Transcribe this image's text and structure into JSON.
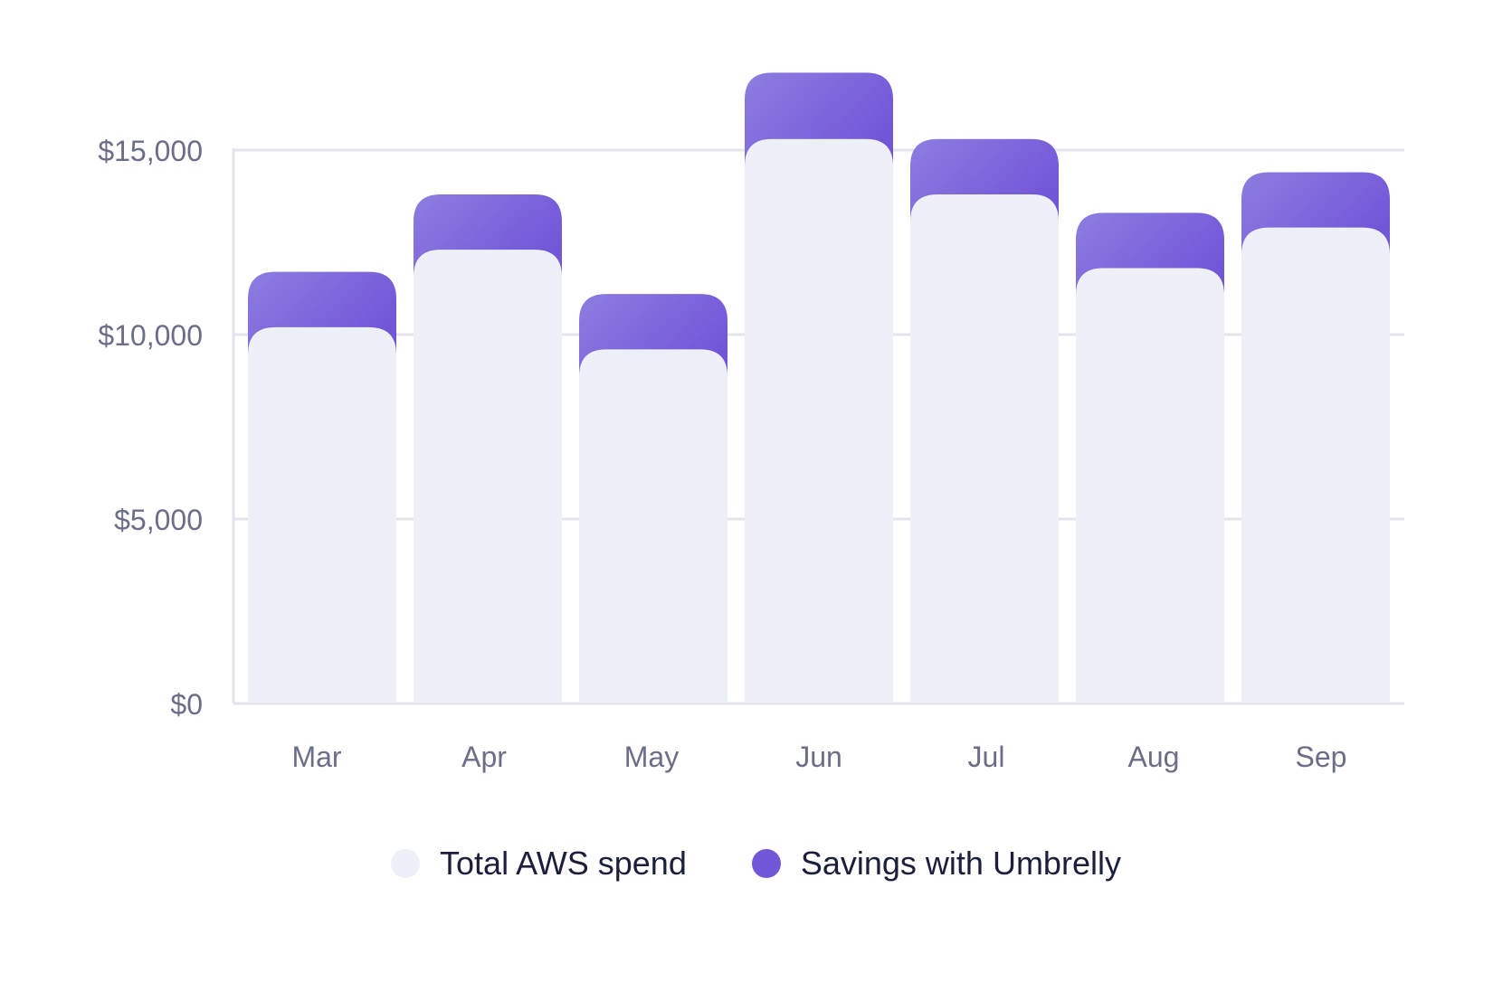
{
  "chart_data": {
    "type": "bar",
    "stacked": true,
    "categories": [
      "Mar",
      "Apr",
      "May",
      "Jun",
      "Jul",
      "Aug",
      "Sep"
    ],
    "series": [
      {
        "name": "Total AWS spend",
        "values": [
          10200,
          12300,
          9600,
          15300,
          13800,
          11800,
          12900
        ],
        "color": "#eef0f7"
      },
      {
        "name": "Savings with Umbrelly",
        "values": [
          1500,
          1500,
          1500,
          1800,
          1500,
          1500,
          1500
        ],
        "color": "#7256d8"
      }
    ],
    "y_ticks": [
      {
        "value": 0,
        "label": "$0"
      },
      {
        "value": 5000,
        "label": "$5,000"
      },
      {
        "value": 10000,
        "label": "$10,000"
      },
      {
        "value": 15000,
        "label": "$15,000"
      }
    ],
    "ylim": [
      0,
      17000
    ],
    "grid": true,
    "legend_position": "bottom-center",
    "colors": {
      "axis_text": "#6b6e86",
      "grid": "#e4e5ec",
      "savings_light": "#8d7de0"
    }
  }
}
